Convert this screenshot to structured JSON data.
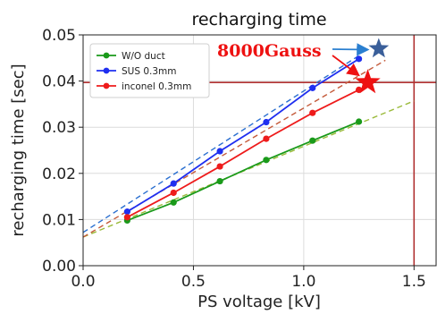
{
  "chart_data": {
    "type": "line",
    "title": "recharging time",
    "xlabel": "PS voltage [kV]",
    "ylabel": "recharging time [sec]",
    "xlim": [
      0.0,
      1.6
    ],
    "ylim": [
      0.0,
      0.05
    ],
    "xticks": [
      "0.0",
      "0.5",
      "1.0",
      "1.5"
    ],
    "yticks": [
      "0.00",
      "0.01",
      "0.02",
      "0.03",
      "0.04",
      "0.05"
    ],
    "grid": true,
    "legend_position": "top-left",
    "series": [
      {
        "name": "W/O duct",
        "color": "#1a9a1a",
        "x": [
          0.2,
          0.41,
          0.62,
          0.83,
          1.04,
          1.25
        ],
        "y": [
          0.0098,
          0.0137,
          0.0183,
          0.0229,
          0.0271,
          0.0312
        ],
        "fit_x": [
          0.0,
          1.5
        ],
        "fit_y": [
          0.0062,
          0.0357
        ],
        "fit_color": "#9aba3a"
      },
      {
        "name": "SUS 0.3mm",
        "color": "#1f2ff0",
        "x": [
          0.2,
          0.41,
          0.62,
          0.83,
          1.04,
          1.25
        ],
        "y": [
          0.0117,
          0.0178,
          0.0248,
          0.0311,
          0.0385,
          0.0448
        ],
        "fit_x": [
          0.0,
          1.25
        ],
        "fit_y": [
          0.0072,
          0.0455
        ],
        "fit_color": "#2a6fd0"
      },
      {
        "name": "inconel 0.3mm",
        "color": "#ee1b1b",
        "x": [
          0.2,
          0.41,
          0.62,
          0.83,
          1.04,
          1.25
        ],
        "y": [
          0.0105,
          0.0158,
          0.0215,
          0.0275,
          0.0331,
          0.0381
        ],
        "fit_x": [
          0.0,
          1.37
        ],
        "fit_y": [
          0.0062,
          0.0445
        ],
        "fit_color": "#c45a3a"
      }
    ],
    "reference_lines": {
      "horizontal_y": 0.0397,
      "vertical_x": 1.5,
      "color": "#b03030"
    },
    "annotations": [
      {
        "text": "8000Gauss",
        "color": "#ee1111",
        "stars": [
          {
            "x": 1.34,
            "y": 0.047,
            "color": "#3a5f9a"
          },
          {
            "x": 1.29,
            "y": 0.0397,
            "color": "#ee1111"
          }
        ]
      }
    ]
  }
}
